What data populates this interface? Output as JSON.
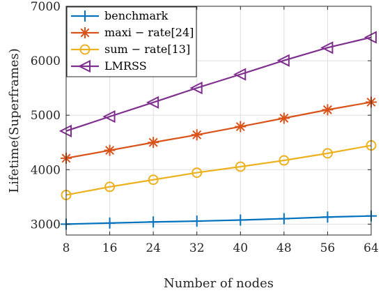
{
  "chart_data": {
    "type": "line",
    "title": "",
    "xlabel": "Number of nodes",
    "ylabel": "Lifetime(Superframes)",
    "x": [
      8,
      16,
      24,
      32,
      40,
      48,
      56,
      64
    ],
    "xlim": [
      8,
      64
    ],
    "ylim": [
      2800,
      7000
    ],
    "xticks": [
      "8",
      "16",
      "24",
      "32",
      "40",
      "48",
      "56",
      "64"
    ],
    "yticks": [
      "3000",
      "4000",
      "5000",
      "6000",
      "7000"
    ],
    "grid": true,
    "legend_position": "top-left",
    "series": [
      {
        "name": "benchmark",
        "color": "#0072BD",
        "marker": "plus",
        "values": [
          3000,
          3020,
          3040,
          3055,
          3075,
          3100,
          3130,
          3150
        ]
      },
      {
        "name": "maxi − rate[24]",
        "color": "#D95319",
        "marker": "asterisk",
        "values": [
          4210,
          4355,
          4500,
          4640,
          4790,
          4945,
          5100,
          5240
        ]
      },
      {
        "name": "sum − rate[13]",
        "color": "#EDB120",
        "marker": "circle",
        "values": [
          3535,
          3685,
          3815,
          3945,
          4055,
          4170,
          4300,
          4445
        ]
      },
      {
        "name": "LMRSS",
        "color": "#7E2F8E",
        "marker": "triangle-left",
        "values": [
          4710,
          4975,
          5235,
          5500,
          5750,
          6005,
          6240,
          6430
        ]
      }
    ]
  }
}
